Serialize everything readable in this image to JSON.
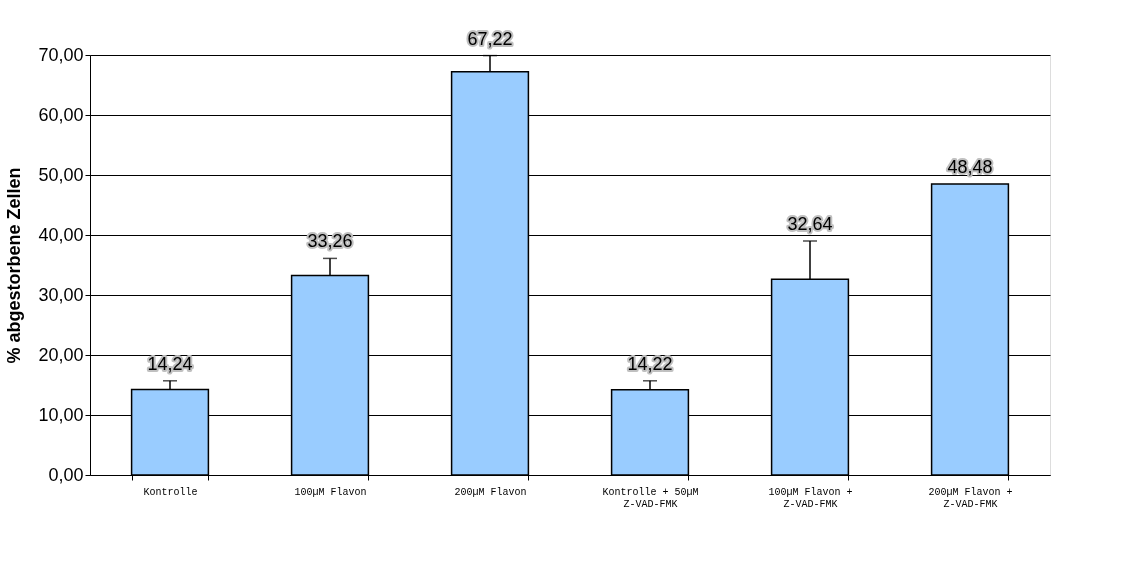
{
  "chart_data": {
    "type": "bar",
    "ylabel": "% abgestorbene Zellen",
    "categories": [
      "Kontrolle",
      "100µM Flavon",
      "200µM Flavon",
      "Kontrolle + 50µM Z-VAD-FMK",
      "100µM Flavon + Z-VAD-FMK",
      "200µM Flavon + Z-VAD-FMK"
    ],
    "values": [
      14.24,
      33.26,
      67.22,
      14.22,
      32.64,
      48.48
    ],
    "value_labels": [
      "14,24",
      "33,26",
      "67,22",
      "14,22",
      "32,64",
      "48,48"
    ],
    "errors": [
      [
        14.24,
        15.7
      ],
      [
        33.26,
        36.1
      ],
      [
        67.22,
        69.9
      ],
      [
        14.22,
        15.7
      ],
      [
        32.64,
        39.0
      ],
      null
    ],
    "color": "#99ccff",
    "ylim": [
      0,
      70
    ],
    "yticks": [
      {
        "value": 0,
        "label": "0,00"
      },
      {
        "value": 10,
        "label": "10,00"
      },
      {
        "value": 20,
        "label": "20,00"
      },
      {
        "value": 30,
        "label": "30,00"
      },
      {
        "value": 40,
        "label": "40,00"
      },
      {
        "value": 50,
        "label": "50,00"
      },
      {
        "value": 60,
        "label": "60,00"
      },
      {
        "value": 70,
        "label": "70,00"
      }
    ],
    "grid": "y"
  }
}
